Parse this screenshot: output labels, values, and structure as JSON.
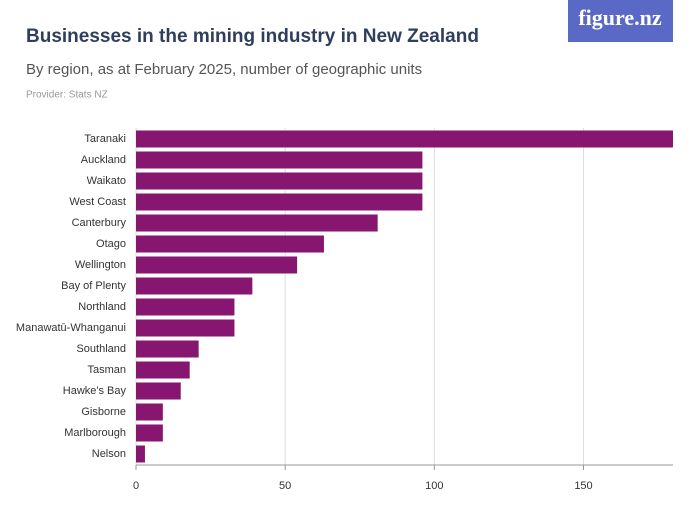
{
  "chart_data": {
    "type": "hbar",
    "title": "Businesses in the mining industry in New Zealand",
    "subtitle": "By region, as at February 2025, number of geographic units",
    "provider": "Provider: Stats NZ",
    "logo": "figure.nz",
    "categories": [
      "Taranaki",
      "Auckland",
      "Waikato",
      "West Coast",
      "Canterbury",
      "Otago",
      "Wellington",
      "Bay of Plenty",
      "Northland",
      "Manawatū-Whanganui",
      "Southland",
      "Tasman",
      "Hawke's Bay",
      "Gisborne",
      "Marlborough",
      "Nelson"
    ],
    "values": [
      180,
      96,
      96,
      96,
      81,
      63,
      54,
      39,
      33,
      33,
      21,
      18,
      15,
      9,
      9,
      3
    ],
    "color": "#86166f",
    "xlim": [
      0,
      180
    ],
    "xticks": [
      0,
      50,
      100,
      150
    ],
    "grid": true
  }
}
